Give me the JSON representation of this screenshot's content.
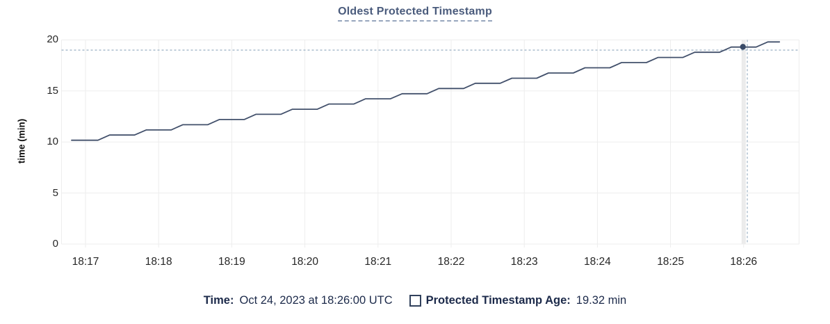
{
  "title": "Oldest Protected Timestamp",
  "y_axis": {
    "label": "time (min)",
    "ticks": [
      0,
      5,
      10,
      15,
      20
    ],
    "max": 20
  },
  "x_axis": {
    "tick_labels": [
      "18:17",
      "18:18",
      "18:19",
      "18:20",
      "18:21",
      "18:22",
      "18:23",
      "18:24",
      "18:25",
      "18:26"
    ]
  },
  "legend": {
    "time_label": "Time:",
    "time_value": "Oct 24, 2023 at 18:26:00 UTC",
    "series_label": "Protected Timestamp Age:",
    "series_value": "19.32 min"
  },
  "colors": {
    "line": "#42506b",
    "dot": "#394a67",
    "title": "#4a5b7c",
    "title_underline": "#97a6be",
    "legend_text": "#1c2a4a",
    "swatch_border": "#31415c",
    "grid": "#ededed",
    "crosshair": "#a2b6c8",
    "hover_band": "#ebebeb",
    "tick_text": "#262626"
  },
  "chart_data": {
    "type": "line",
    "title": "Oldest Protected Timestamp",
    "ylabel": "time (min)",
    "ylim": [
      0,
      20
    ],
    "y_ticks": [
      0,
      5,
      10,
      15,
      20
    ],
    "x_tick_labels": [
      "18:17",
      "18:18",
      "18:19",
      "18:20",
      "18:21",
      "18:22",
      "18:23",
      "18:24",
      "18:25",
      "18:26"
    ],
    "x_unit": "minutes after 18:17 UTC",
    "x_range": [
      -0.33,
      9.75
    ],
    "grid": true,
    "legend_position": "bottom",
    "series": [
      {
        "name": "Protected Timestamp Age",
        "unit": "min",
        "points": [
          [
            -0.19,
            10.17
          ],
          [
            0.17,
            10.17
          ],
          [
            0.33,
            10.68
          ],
          [
            0.67,
            10.68
          ],
          [
            0.83,
            11.18
          ],
          [
            1.17,
            11.18
          ],
          [
            1.33,
            11.69
          ],
          [
            1.67,
            11.69
          ],
          [
            1.83,
            12.2
          ],
          [
            2.17,
            12.2
          ],
          [
            2.33,
            12.71
          ],
          [
            2.67,
            12.71
          ],
          [
            2.83,
            13.21
          ],
          [
            3.17,
            13.21
          ],
          [
            3.33,
            13.72
          ],
          [
            3.67,
            13.72
          ],
          [
            3.83,
            14.23
          ],
          [
            4.17,
            14.23
          ],
          [
            4.33,
            14.73
          ],
          [
            4.67,
            14.73
          ],
          [
            4.83,
            15.24
          ],
          [
            5.17,
            15.24
          ],
          [
            5.33,
            15.75
          ],
          [
            5.67,
            15.75
          ],
          [
            5.83,
            16.25
          ],
          [
            6.17,
            16.25
          ],
          [
            6.33,
            16.76
          ],
          [
            6.67,
            16.76
          ],
          [
            6.83,
            17.27
          ],
          [
            7.17,
            17.27
          ],
          [
            7.33,
            17.78
          ],
          [
            7.67,
            17.78
          ],
          [
            7.83,
            18.28
          ],
          [
            8.17,
            18.28
          ],
          [
            8.33,
            18.79
          ],
          [
            8.67,
            18.79
          ],
          [
            8.83,
            19.3
          ],
          [
            9.17,
            19.3
          ],
          [
            9.33,
            19.8
          ],
          [
            9.49,
            19.8
          ]
        ]
      }
    ],
    "hover": {
      "time_label": "Oct 24, 2023 at 18:26:00 UTC",
      "t": 8.99,
      "value": 19.32,
      "crosshair_h_value": 19.0,
      "crosshair_v_t": 9.05,
      "band_t": 9.0
    }
  }
}
